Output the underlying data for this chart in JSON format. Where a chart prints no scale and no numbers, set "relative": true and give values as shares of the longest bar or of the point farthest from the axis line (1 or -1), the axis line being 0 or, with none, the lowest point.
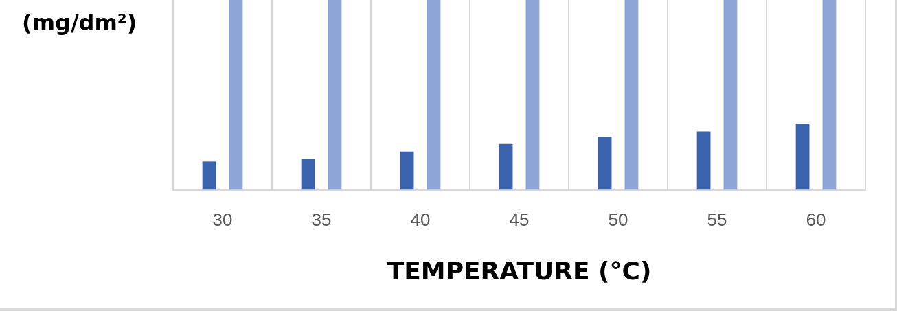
{
  "chart_data": {
    "type": "bar",
    "xlabel": "TEMPERATURE (°C)",
    "ylabel": "(mg/dm²)",
    "relative": true,
    "grid": "x",
    "categories": [
      "30",
      "35",
      "40",
      "45",
      "50",
      "55",
      "60"
    ],
    "series": [
      {
        "color": "#3a62ad",
        "values": [
          0.149,
          0.162,
          0.202,
          0.242,
          0.281,
          0.308,
          0.348
        ]
      },
      {
        "color": "#8ea5d8",
        "values": [
          1,
          1,
          1,
          1,
          1,
          1,
          1
        ]
      }
    ]
  }
}
